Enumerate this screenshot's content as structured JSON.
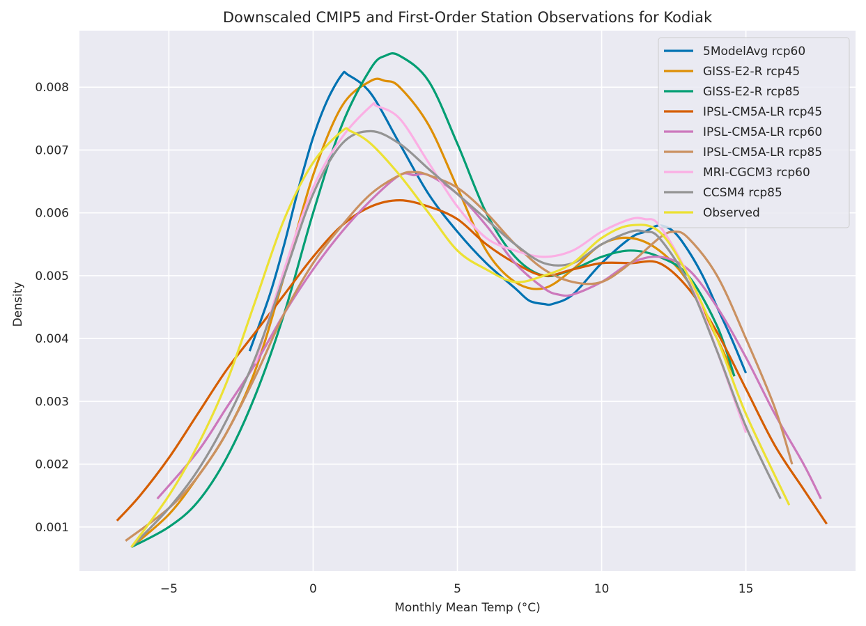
{
  "chart_data": {
    "type": "line",
    "title": "Downscaled CMIP5 and First-Order Station Observations for Kodiak",
    "xlabel": "Monthly Mean Temp (°C)",
    "ylabel": "Density",
    "xlim": [
      -8.1,
      18.8
    ],
    "ylim": [
      0.0003,
      0.0089
    ],
    "xticks": [
      -5,
      0,
      5,
      10,
      15
    ],
    "xtick_labels": [
      "−5",
      "0",
      "5",
      "10",
      "15"
    ],
    "yticks": [
      0.001,
      0.002,
      0.003,
      0.004,
      0.005,
      0.006,
      0.007,
      0.008
    ],
    "ytick_labels": [
      "0.001",
      "0.002",
      "0.003",
      "0.004",
      "0.005",
      "0.006",
      "0.007",
      "0.008"
    ],
    "grid": true,
    "legend_position": "top-right",
    "series": [
      {
        "name": "5ModelAvg rcp60",
        "color": "#0072b2",
        "x": [
          -2.2,
          -1.5,
          -1.0,
          -0.5,
          0.0,
          0.5,
          1.0,
          1.2,
          2.0,
          3.0,
          4.0,
          5.0,
          6.0,
          7.0,
          7.5,
          8.0,
          8.3,
          9.0,
          10.0,
          11.0,
          11.5,
          12.0,
          12.5,
          13.0,
          13.5,
          14.0,
          14.5,
          15.0
        ],
        "y": [
          0.0038,
          0.0047,
          0.0055,
          0.0064,
          0.0072,
          0.0078,
          0.0082,
          0.0082,
          0.0079,
          0.0071,
          0.0063,
          0.0057,
          0.0052,
          0.0048,
          0.0046,
          0.00455,
          0.00455,
          0.0047,
          0.0052,
          0.0056,
          0.0057,
          0.0058,
          0.0057,
          0.0054,
          0.005,
          0.0045,
          0.004,
          0.00345
        ]
      },
      {
        "name": "GISS-E2-R rcp45",
        "color": "#de8f05",
        "x": [
          -6.3,
          -5.0,
          -4.0,
          -3.0,
          -2.0,
          -1.0,
          0.0,
          1.0,
          2.0,
          2.5,
          3.0,
          4.0,
          5.0,
          6.0,
          7.0,
          8.0,
          9.0,
          10.0,
          11.0,
          12.0,
          13.0,
          14.0,
          14.6
        ],
        "y": [
          0.00068,
          0.0012,
          0.0018,
          0.0025,
          0.0035,
          0.005,
          0.0066,
          0.0077,
          0.0081,
          0.0081,
          0.008,
          0.0074,
          0.0064,
          0.0054,
          0.0049,
          0.0048,
          0.0051,
          0.0055,
          0.0056,
          0.0054,
          0.0049,
          0.004,
          0.0034
        ]
      },
      {
        "name": "GISS-E2-R rcp85",
        "color": "#029e73",
        "x": [
          -6.3,
          -5.0,
          -4.0,
          -3.0,
          -2.0,
          -1.0,
          0.0,
          1.0,
          2.0,
          2.5,
          3.0,
          4.0,
          5.0,
          6.0,
          7.0,
          8.0,
          9.0,
          10.0,
          11.0,
          12.0,
          13.0,
          14.0,
          14.6
        ],
        "y": [
          0.00068,
          0.001,
          0.0014,
          0.0021,
          0.0031,
          0.0044,
          0.006,
          0.0074,
          0.0083,
          0.0085,
          0.0085,
          0.0081,
          0.0071,
          0.006,
          0.0053,
          0.005,
          0.0051,
          0.0053,
          0.0054,
          0.0053,
          0.005,
          0.0042,
          0.0034
        ]
      },
      {
        "name": "IPSL-CM5A-LR rcp45",
        "color": "#d55e00",
        "x": [
          -6.8,
          -6.0,
          -5.0,
          -4.0,
          -3.0,
          -2.0,
          -1.0,
          0.0,
          1.0,
          2.0,
          3.0,
          4.0,
          5.0,
          6.0,
          7.0,
          8.0,
          9.0,
          10.0,
          11.0,
          12.0,
          13.0,
          14.0,
          15.0,
          16.0,
          17.0,
          17.8
        ],
        "y": [
          0.0011,
          0.0015,
          0.0021,
          0.0028,
          0.0035,
          0.0041,
          0.0047,
          0.0053,
          0.0058,
          0.0061,
          0.0062,
          0.0061,
          0.0059,
          0.0055,
          0.0052,
          0.005,
          0.0051,
          0.0052,
          0.0052,
          0.0052,
          0.0048,
          0.0041,
          0.0032,
          0.0023,
          0.0016,
          0.00105
        ]
      },
      {
        "name": "IPSL-CM5A-LR rcp60",
        "color": "#cc78bc",
        "x": [
          -5.4,
          -4.0,
          -3.0,
          -2.0,
          -1.0,
          0.0,
          1.0,
          2.0,
          3.0,
          3.5,
          4.0,
          5.0,
          6.0,
          7.0,
          8.0,
          8.5,
          9.0,
          10.0,
          11.0,
          12.0,
          13.0,
          14.0,
          15.0,
          16.0,
          17.0,
          17.6
        ],
        "y": [
          0.00145,
          0.0022,
          0.0029,
          0.0036,
          0.0044,
          0.0051,
          0.0057,
          0.0062,
          0.0066,
          0.0066,
          0.0066,
          0.0063,
          0.0058,
          0.0052,
          0.0048,
          0.0047,
          0.0047,
          0.0049,
          0.0052,
          0.0053,
          0.0051,
          0.0045,
          0.0037,
          0.0028,
          0.002,
          0.00145
        ]
      },
      {
        "name": "IPSL-CM5A-LR rcp85",
        "color": "#ca9161",
        "x": [
          -6.5,
          -5.0,
          -4.0,
          -3.0,
          -2.0,
          -1.0,
          0.0,
          1.0,
          2.0,
          3.0,
          3.5,
          4.0,
          5.0,
          6.0,
          7.0,
          8.0,
          9.0,
          10.0,
          11.0,
          12.0,
          12.5,
          13.0,
          14.0,
          15.0,
          16.0,
          16.6
        ],
        "y": [
          0.00078,
          0.0013,
          0.0018,
          0.0025,
          0.0034,
          0.0044,
          0.0052,
          0.0058,
          0.0063,
          0.0066,
          0.00665,
          0.0066,
          0.0064,
          0.006,
          0.0055,
          0.0051,
          0.0049,
          0.0049,
          0.0052,
          0.0056,
          0.0057,
          0.0056,
          0.005,
          0.004,
          0.0029,
          0.002
        ]
      },
      {
        "name": "MRI-CGCM3 rcp60",
        "color": "#fbafe4",
        "x": [
          -2.0,
          -1.0,
          0.0,
          1.0,
          2.0,
          2.2,
          3.0,
          4.0,
          5.0,
          6.0,
          7.0,
          8.0,
          9.0,
          10.0,
          11.0,
          11.5,
          12.0,
          13.0,
          14.0,
          15.0
        ],
        "y": [
          0.0036,
          0.0051,
          0.0064,
          0.0072,
          0.0077,
          0.0077,
          0.0075,
          0.0068,
          0.0061,
          0.0056,
          0.0054,
          0.0053,
          0.0054,
          0.0057,
          0.0059,
          0.0059,
          0.0058,
          0.005,
          0.0038,
          0.0025
        ]
      },
      {
        "name": "CCSM4 rcp85",
        "color": "#949494",
        "x": [
          -6.3,
          -5.0,
          -4.0,
          -3.0,
          -2.0,
          -1.0,
          0.0,
          1.0,
          2.0,
          3.0,
          4.0,
          5.0,
          6.0,
          7.0,
          8.0,
          9.0,
          10.0,
          11.0,
          11.5,
          12.0,
          13.0,
          14.0,
          15.0,
          16.2
        ],
        "y": [
          0.00068,
          0.0013,
          0.0019,
          0.0027,
          0.0037,
          0.005,
          0.0063,
          0.0071,
          0.0073,
          0.0071,
          0.0067,
          0.0063,
          0.0059,
          0.0055,
          0.0052,
          0.0052,
          0.0055,
          0.0057,
          0.0057,
          0.0056,
          0.0049,
          0.0038,
          0.0026,
          0.00145
        ]
      },
      {
        "name": "Observed",
        "color": "#ece133",
        "x": [
          -6.3,
          -5.0,
          -4.0,
          -3.0,
          -2.0,
          -1.0,
          0.0,
          1.0,
          1.3,
          2.0,
          3.0,
          4.0,
          5.0,
          6.0,
          7.0,
          8.0,
          9.0,
          10.0,
          11.0,
          12.0,
          13.0,
          14.0,
          15.0,
          16.5
        ],
        "y": [
          0.00068,
          0.0015,
          0.0023,
          0.0033,
          0.0046,
          0.0059,
          0.0068,
          0.0073,
          0.0073,
          0.0071,
          0.0066,
          0.006,
          0.0054,
          0.0051,
          0.0049,
          0.005,
          0.0052,
          0.0056,
          0.0058,
          0.0057,
          0.005,
          0.004,
          0.0028,
          0.00135
        ]
      }
    ]
  }
}
